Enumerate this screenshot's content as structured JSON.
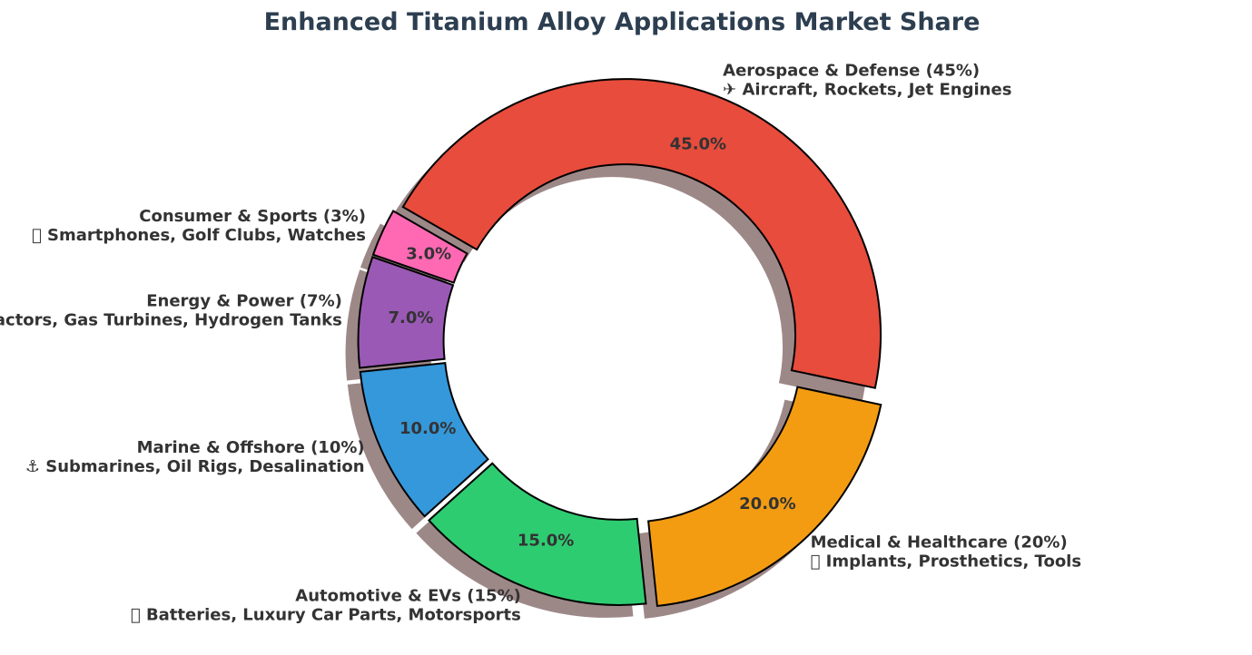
{
  "chart_data": {
    "type": "pie",
    "title": "Enhanced Titanium Alloy Applications Market Share",
    "donut": true,
    "shadow": true,
    "slices": [
      {
        "name": "Aerospace & Defense (45%)",
        "applications": "✈ Aircraft, Rockets, Jet Engines",
        "value": 45,
        "pct_label": "45.0%",
        "color": "#e74c3c"
      },
      {
        "name": "Medical & Healthcare (20%)",
        "applications": "􏿾 Implants, Prosthetics, Tools",
        "value": 20,
        "pct_label": "20.0%",
        "color": "#f39c12"
      },
      {
        "name": "Automotive & EVs (15%)",
        "applications": "􏿾 Batteries, Luxury Car Parts, Motorsports",
        "value": 15,
        "pct_label": "15.0%",
        "color": "#2ecc71"
      },
      {
        "name": "Marine & Offshore (10%)",
        "applications": "⚓ Submarines, Oil Rigs, Desalination",
        "value": 10,
        "pct_label": "10.0%",
        "color": "#3498db"
      },
      {
        "name": "Energy & Power (7%)",
        "applications": "⚡ Nuclear Reactors, Gas Turbines, Hydrogen Tanks",
        "value": 7,
        "pct_label": "7.0%",
        "color": "#9b59b6"
      },
      {
        "name": "Consumer & Sports (3%)",
        "applications": "􏿾 Smartphones, Golf Clubs, Watches",
        "value": 3,
        "pct_label": "3.0%",
        "color": "#ff69b4"
      }
    ]
  }
}
